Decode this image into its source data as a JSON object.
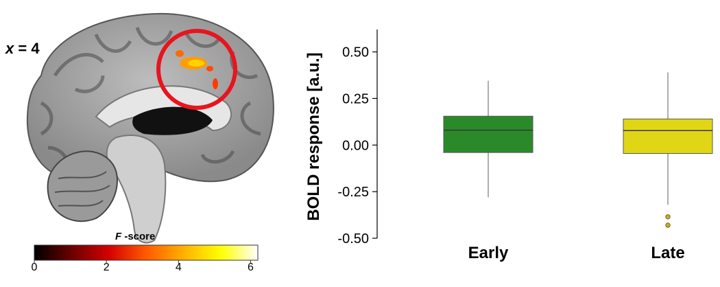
{
  "brain_panel": {
    "slice_label": {
      "var": "x",
      "rest": " = 4"
    },
    "colorbar": {
      "title_var": "F",
      "title_rest": " -score",
      "ticks": [
        "0",
        "2",
        "4",
        "6"
      ],
      "min": 0,
      "max": 6.2,
      "colors": [
        "#000000",
        "#6b0000",
        "#d40000",
        "#ff5a00",
        "#ffb000",
        "#ffff00",
        "#ffffff"
      ]
    },
    "highlight_color": "#e8141e"
  },
  "chart_data": {
    "type": "box",
    "ylabel": "BOLD response [a.u.]",
    "ylim": [
      -0.5,
      0.62
    ],
    "yticks": [
      0.5,
      0.25,
      0.0,
      -0.25,
      -0.5
    ],
    "ytick_labels": [
      "0.50",
      "0.25",
      "0.00",
      "-0.25",
      "-0.50"
    ],
    "categories": [
      "Early",
      "Late"
    ],
    "boxes": [
      {
        "name": "Early",
        "whisker_low": -0.28,
        "q1": -0.04,
        "median": 0.08,
        "q3": 0.155,
        "whisker_high": 0.345,
        "outliers": [],
        "color": "#2a8a2a"
      },
      {
        "name": "Late",
        "whisker_low": -0.32,
        "q1": -0.045,
        "median": 0.078,
        "q3": 0.14,
        "whisker_high": 0.39,
        "outliers": [
          -0.385,
          -0.43
        ],
        "color": "#e0d615"
      }
    ],
    "grid": false,
    "legend": "none"
  }
}
